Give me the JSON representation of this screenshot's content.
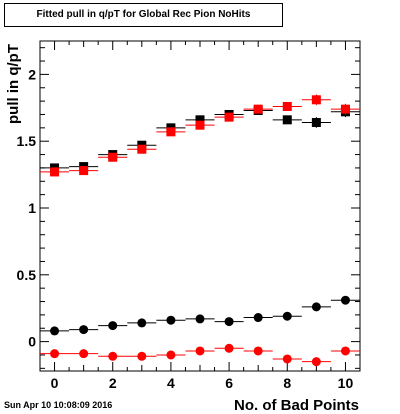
{
  "page": {
    "title": "Fitted pull in q/pT for Global Rec Pion NoHits",
    "timestamp": "Sun Apr 10 10:08:09 2016"
  },
  "chart_data": {
    "type": "scatter",
    "title": "Fitted pull in q/pT for Global Rec Pion NoHits",
    "xlabel": "No. of Bad Points",
    "ylabel": "pull in q/pT",
    "xlim": [
      -0.5,
      10.5
    ],
    "ylim": [
      -0.22,
      2.25
    ],
    "x_ticks": [
      0,
      2,
      4,
      6,
      8,
      10
    ],
    "y_ticks": [
      0,
      0.5,
      1,
      1.5,
      2
    ],
    "y_tick_labels": [
      "0",
      "0.5",
      "1",
      "1.5",
      "2"
    ],
    "x_tick_labels": [
      "0",
      "2",
      "4",
      "6",
      "8",
      "10"
    ],
    "grid": false,
    "legend": "none",
    "x_error": 0.5,
    "series": [
      {
        "marker": "square",
        "color": "#000000",
        "x": [
          0,
          1,
          2,
          3,
          4,
          5,
          6,
          7,
          8,
          9,
          10
        ],
        "y": [
          1.3,
          1.31,
          1.4,
          1.47,
          1.6,
          1.66,
          1.7,
          1.73,
          1.66,
          1.64,
          1.72
        ],
        "yerr": [
          0.02,
          0.02,
          0.02,
          0.02,
          0.02,
          0.02,
          0.02,
          0.03,
          0.03,
          0.04,
          0.04
        ]
      },
      {
        "marker": "square",
        "color": "#ff0000",
        "x": [
          0,
          1,
          2,
          3,
          4,
          5,
          6,
          7,
          8,
          9,
          10
        ],
        "y": [
          1.27,
          1.28,
          1.38,
          1.44,
          1.57,
          1.62,
          1.68,
          1.74,
          1.76,
          1.81,
          1.74
        ],
        "yerr": [
          0.02,
          0.02,
          0.02,
          0.02,
          0.02,
          0.02,
          0.02,
          0.03,
          0.03,
          0.04,
          0.04
        ]
      },
      {
        "marker": "circle",
        "color": "#000000",
        "x": [
          0,
          1,
          2,
          3,
          4,
          5,
          6,
          7,
          8,
          9,
          10
        ],
        "y": [
          0.08,
          0.09,
          0.12,
          0.14,
          0.16,
          0.17,
          0.15,
          0.18,
          0.19,
          0.26,
          0.31
        ],
        "yerr": [
          0.01,
          0.01,
          0.01,
          0.01,
          0.01,
          0.01,
          0.01,
          0.02,
          0.02,
          0.03,
          0.03
        ]
      },
      {
        "marker": "circle",
        "color": "#ff0000",
        "x": [
          0,
          1,
          2,
          3,
          4,
          5,
          6,
          7,
          8,
          9,
          10
        ],
        "y": [
          -0.09,
          -0.09,
          -0.11,
          -0.11,
          -0.1,
          -0.07,
          -0.05,
          -0.07,
          -0.13,
          -0.15,
          -0.07
        ],
        "yerr": [
          0.01,
          0.01,
          0.01,
          0.01,
          0.01,
          0.01,
          0.01,
          0.02,
          0.02,
          0.03,
          0.03
        ]
      }
    ]
  }
}
